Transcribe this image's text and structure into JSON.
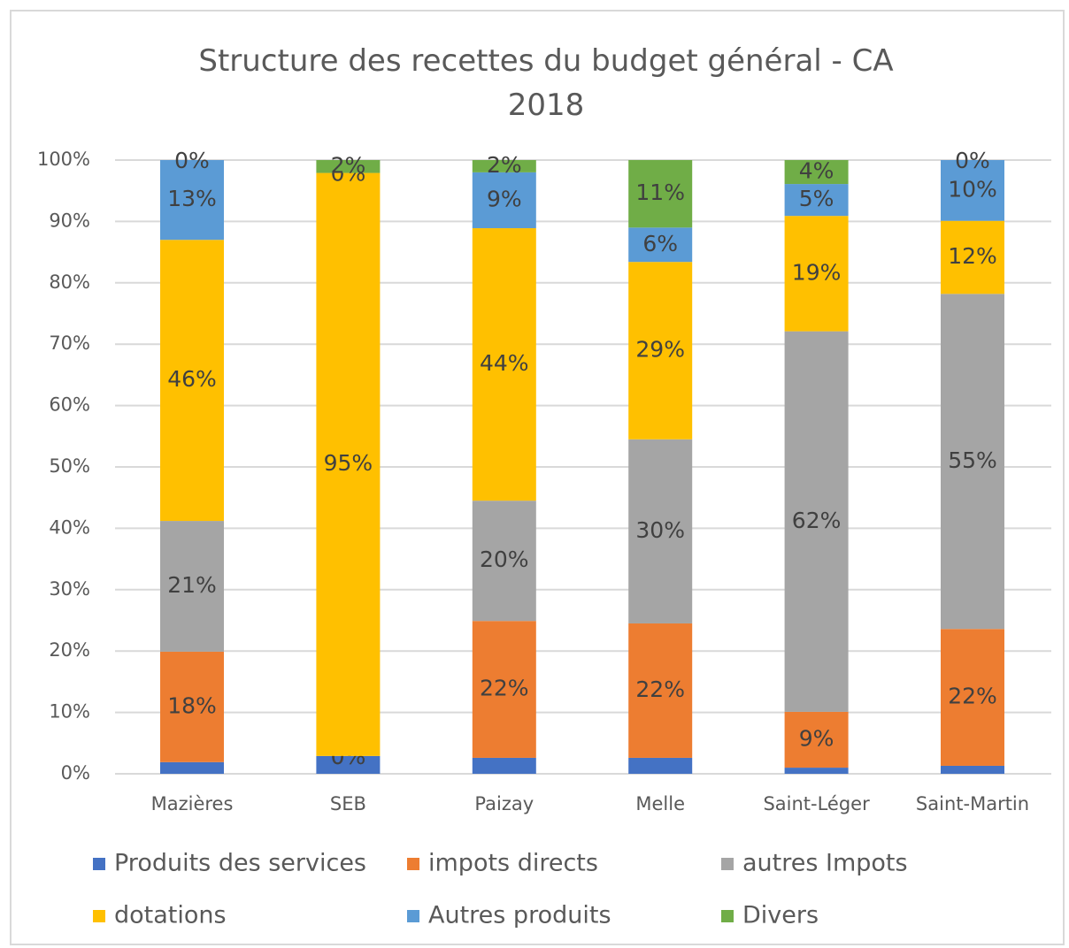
{
  "chart_data": {
    "type": "stacked_bar",
    "title": "Structure des recettes du budget général - CA 2018",
    "categories": [
      "Mazières",
      "SEB",
      "Paizay",
      "Melle",
      "Saint-Léger",
      "Saint-Martin"
    ],
    "series": [
      {
        "name": "Produits des services",
        "color": "#4472c4",
        "values": [
          1.9,
          2.9,
          2.6,
          2.6,
          1.0,
          1.3
        ]
      },
      {
        "name": "impots directs",
        "color": "#ed7d31",
        "values": [
          18,
          0,
          22.3,
          21.9,
          9.1,
          22.3
        ],
        "value_labels": [
          "18%",
          "0%",
          "22%",
          "22%",
          "9%",
          "22%"
        ]
      },
      {
        "name": "autres Impots",
        "color": "#a5a5a5",
        "values": [
          21.3,
          0,
          19.6,
          30,
          62,
          54.6
        ],
        "value_labels": [
          "21%",
          "0%",
          "20%",
          "30%",
          "62%",
          "55%"
        ]
      },
      {
        "name": "dotations",
        "color": "#ffc000",
        "values": [
          45.8,
          95,
          44.4,
          28.9,
          18.8,
          11.9
        ],
        "value_labels": [
          "46%",
          "95%",
          "44%",
          "29%",
          "19%",
          "12%"
        ]
      },
      {
        "name": "Autres produits",
        "color": "#5b9bd5",
        "values": [
          13,
          0,
          9.1,
          5.6,
          5.2,
          9.9
        ],
        "value_labels": [
          "13%",
          "0%",
          "9%",
          "6%",
          "5%",
          "10%"
        ]
      },
      {
        "name": "Divers",
        "color": "#70ad47",
        "values": [
          0,
          2.1,
          2,
          11,
          3.9,
          0
        ],
        "value_labels": [
          "0%",
          "2%",
          "2%",
          "11%",
          "4%",
          "0%"
        ]
      }
    ],
    "ylim": [
      0,
      100
    ],
    "yticks": [
      {
        "value": 0,
        "label": "0%"
      },
      {
        "value": 10,
        "label": "10%"
      },
      {
        "value": 20,
        "label": "20%"
      },
      {
        "value": 30,
        "label": "30%"
      },
      {
        "value": 40,
        "label": "40%"
      },
      {
        "value": 50,
        "label": "50%"
      },
      {
        "value": 60,
        "label": "60%"
      },
      {
        "value": 70,
        "label": "70%"
      },
      {
        "value": 80,
        "label": "80%"
      },
      {
        "value": 90,
        "label": "90%"
      },
      {
        "value": 100,
        "label": "100%"
      }
    ],
    "grid": true
  }
}
